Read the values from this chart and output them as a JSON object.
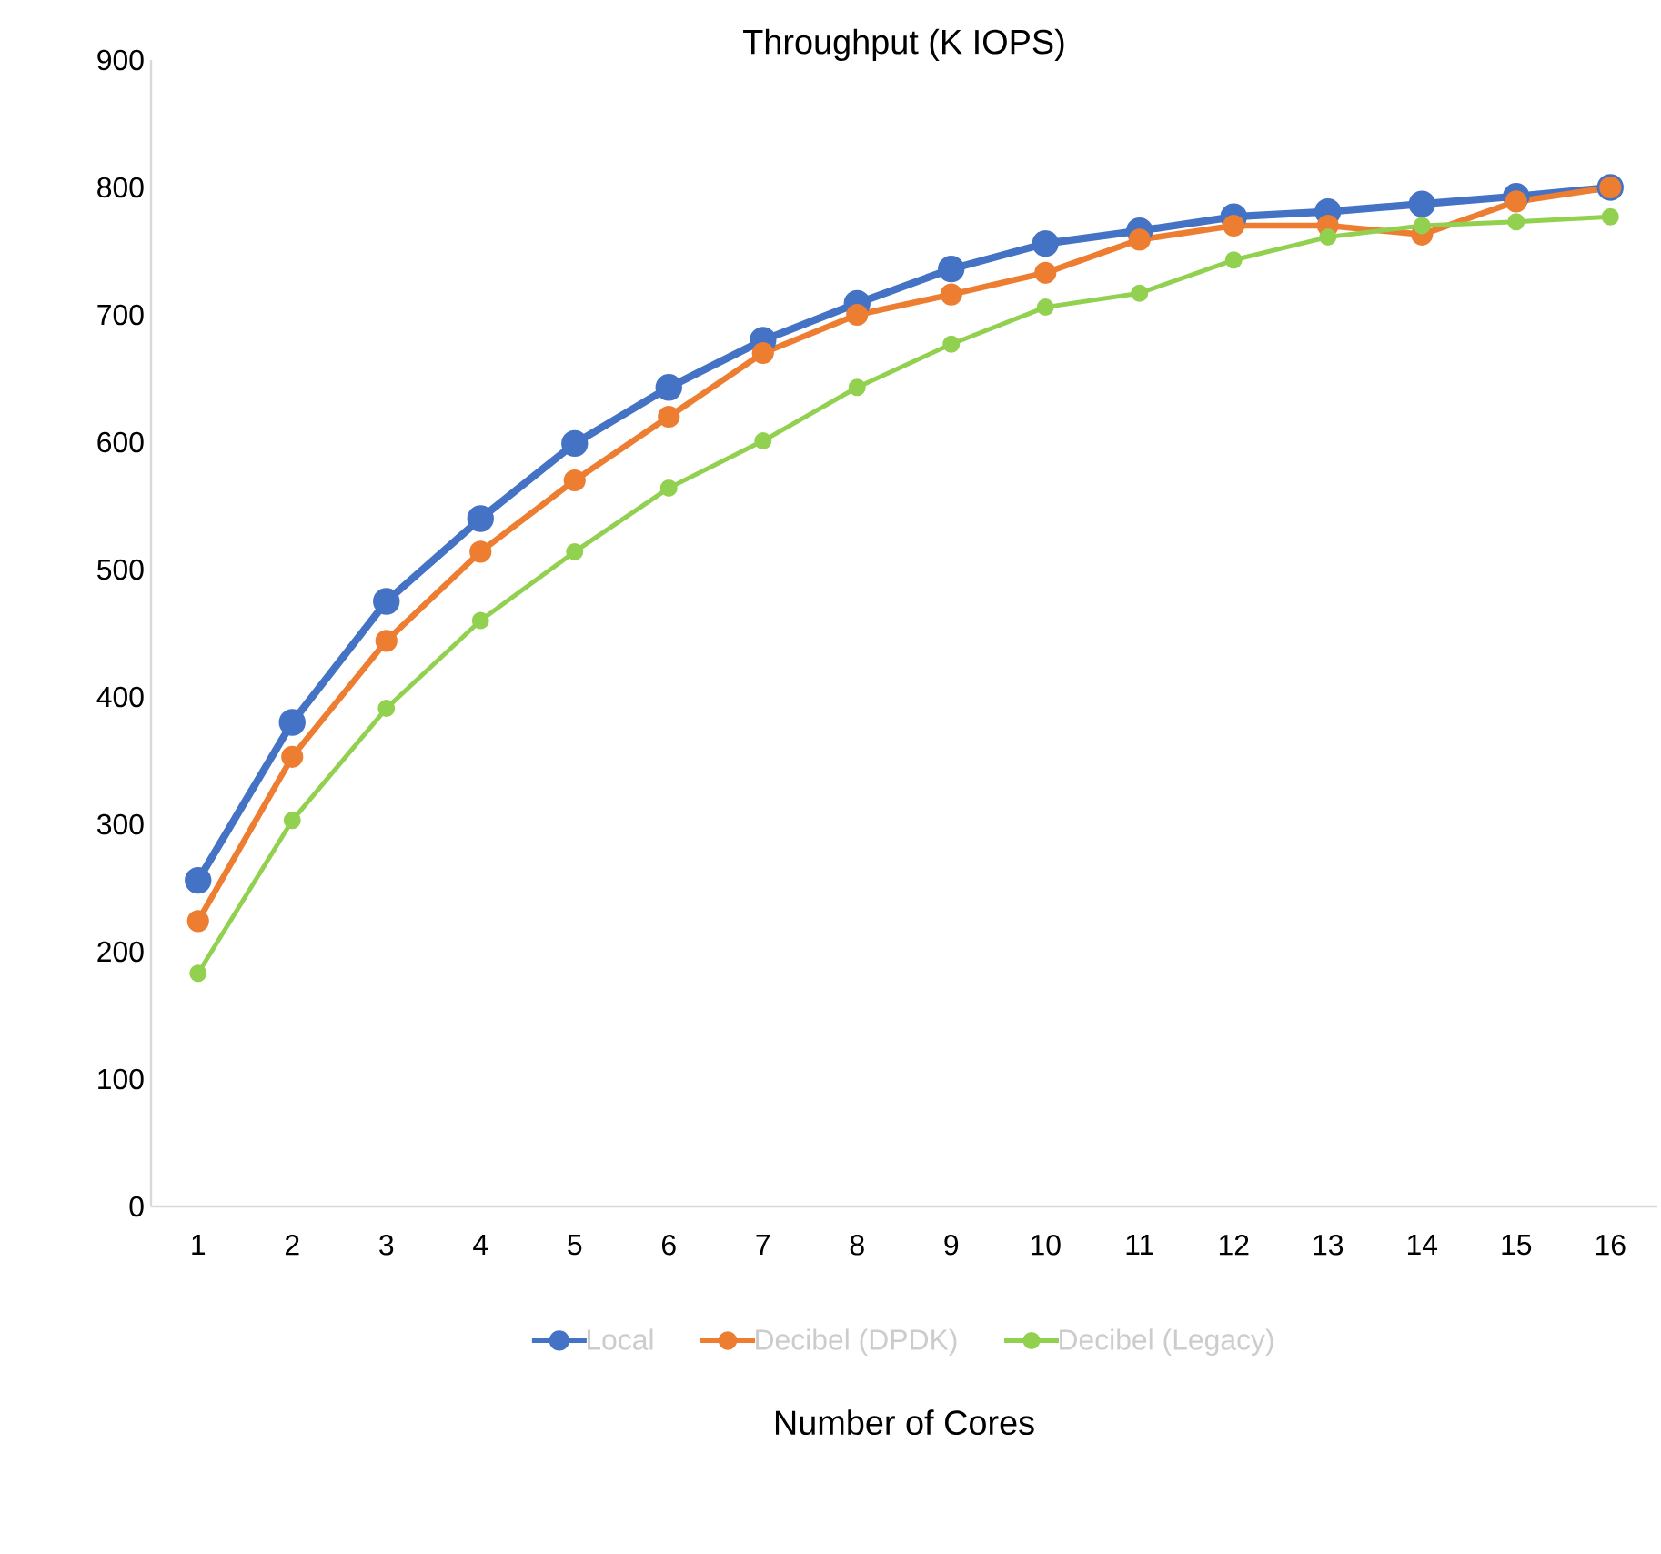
{
  "chart_data": {
    "type": "line",
    "title": "Throughput (K IOPS)",
    "xlabel": "Number of Cores",
    "categories": [
      "1",
      "2",
      "3",
      "4",
      "5",
      "6",
      "7",
      "8",
      "9",
      "10",
      "11",
      "12",
      "13",
      "14",
      "15",
      "16"
    ],
    "series": [
      {
        "name": "Local",
        "color": "#4472c4",
        "values": [
          256,
          380,
          475,
          540,
          599,
          643,
          680,
          709,
          736,
          756,
          766,
          777,
          781,
          787,
          793,
          800
        ]
      },
      {
        "name": "Decibel (DPDK)",
        "color": "#ed7d31",
        "values": [
          224,
          353,
          444,
          514,
          570,
          620,
          670,
          700,
          716,
          733,
          759,
          770,
          770,
          763,
          789,
          800
        ]
      },
      {
        "name": "Decibel (Legacy)",
        "color": "#92d050",
        "values": [
          183,
          303,
          391,
          460,
          514,
          564,
          601,
          643,
          677,
          706,
          717,
          743,
          761,
          770,
          773,
          777
        ]
      }
    ],
    "ylim": [
      0,
      900
    ],
    "yticks": [
      0,
      100,
      200,
      300,
      400,
      500,
      600,
      700,
      800,
      900
    ],
    "grid": false,
    "legend": "bottom",
    "marker": "circle",
    "line_style": "solid"
  }
}
